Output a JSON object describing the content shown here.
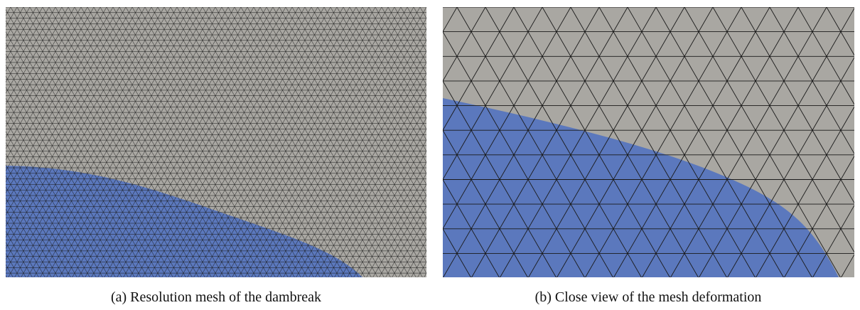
{
  "figures": [
    {
      "caption": "(a) Resolution mesh of the dambreak"
    },
    {
      "caption": "(b) Close view of the mesh deformation"
    }
  ]
}
